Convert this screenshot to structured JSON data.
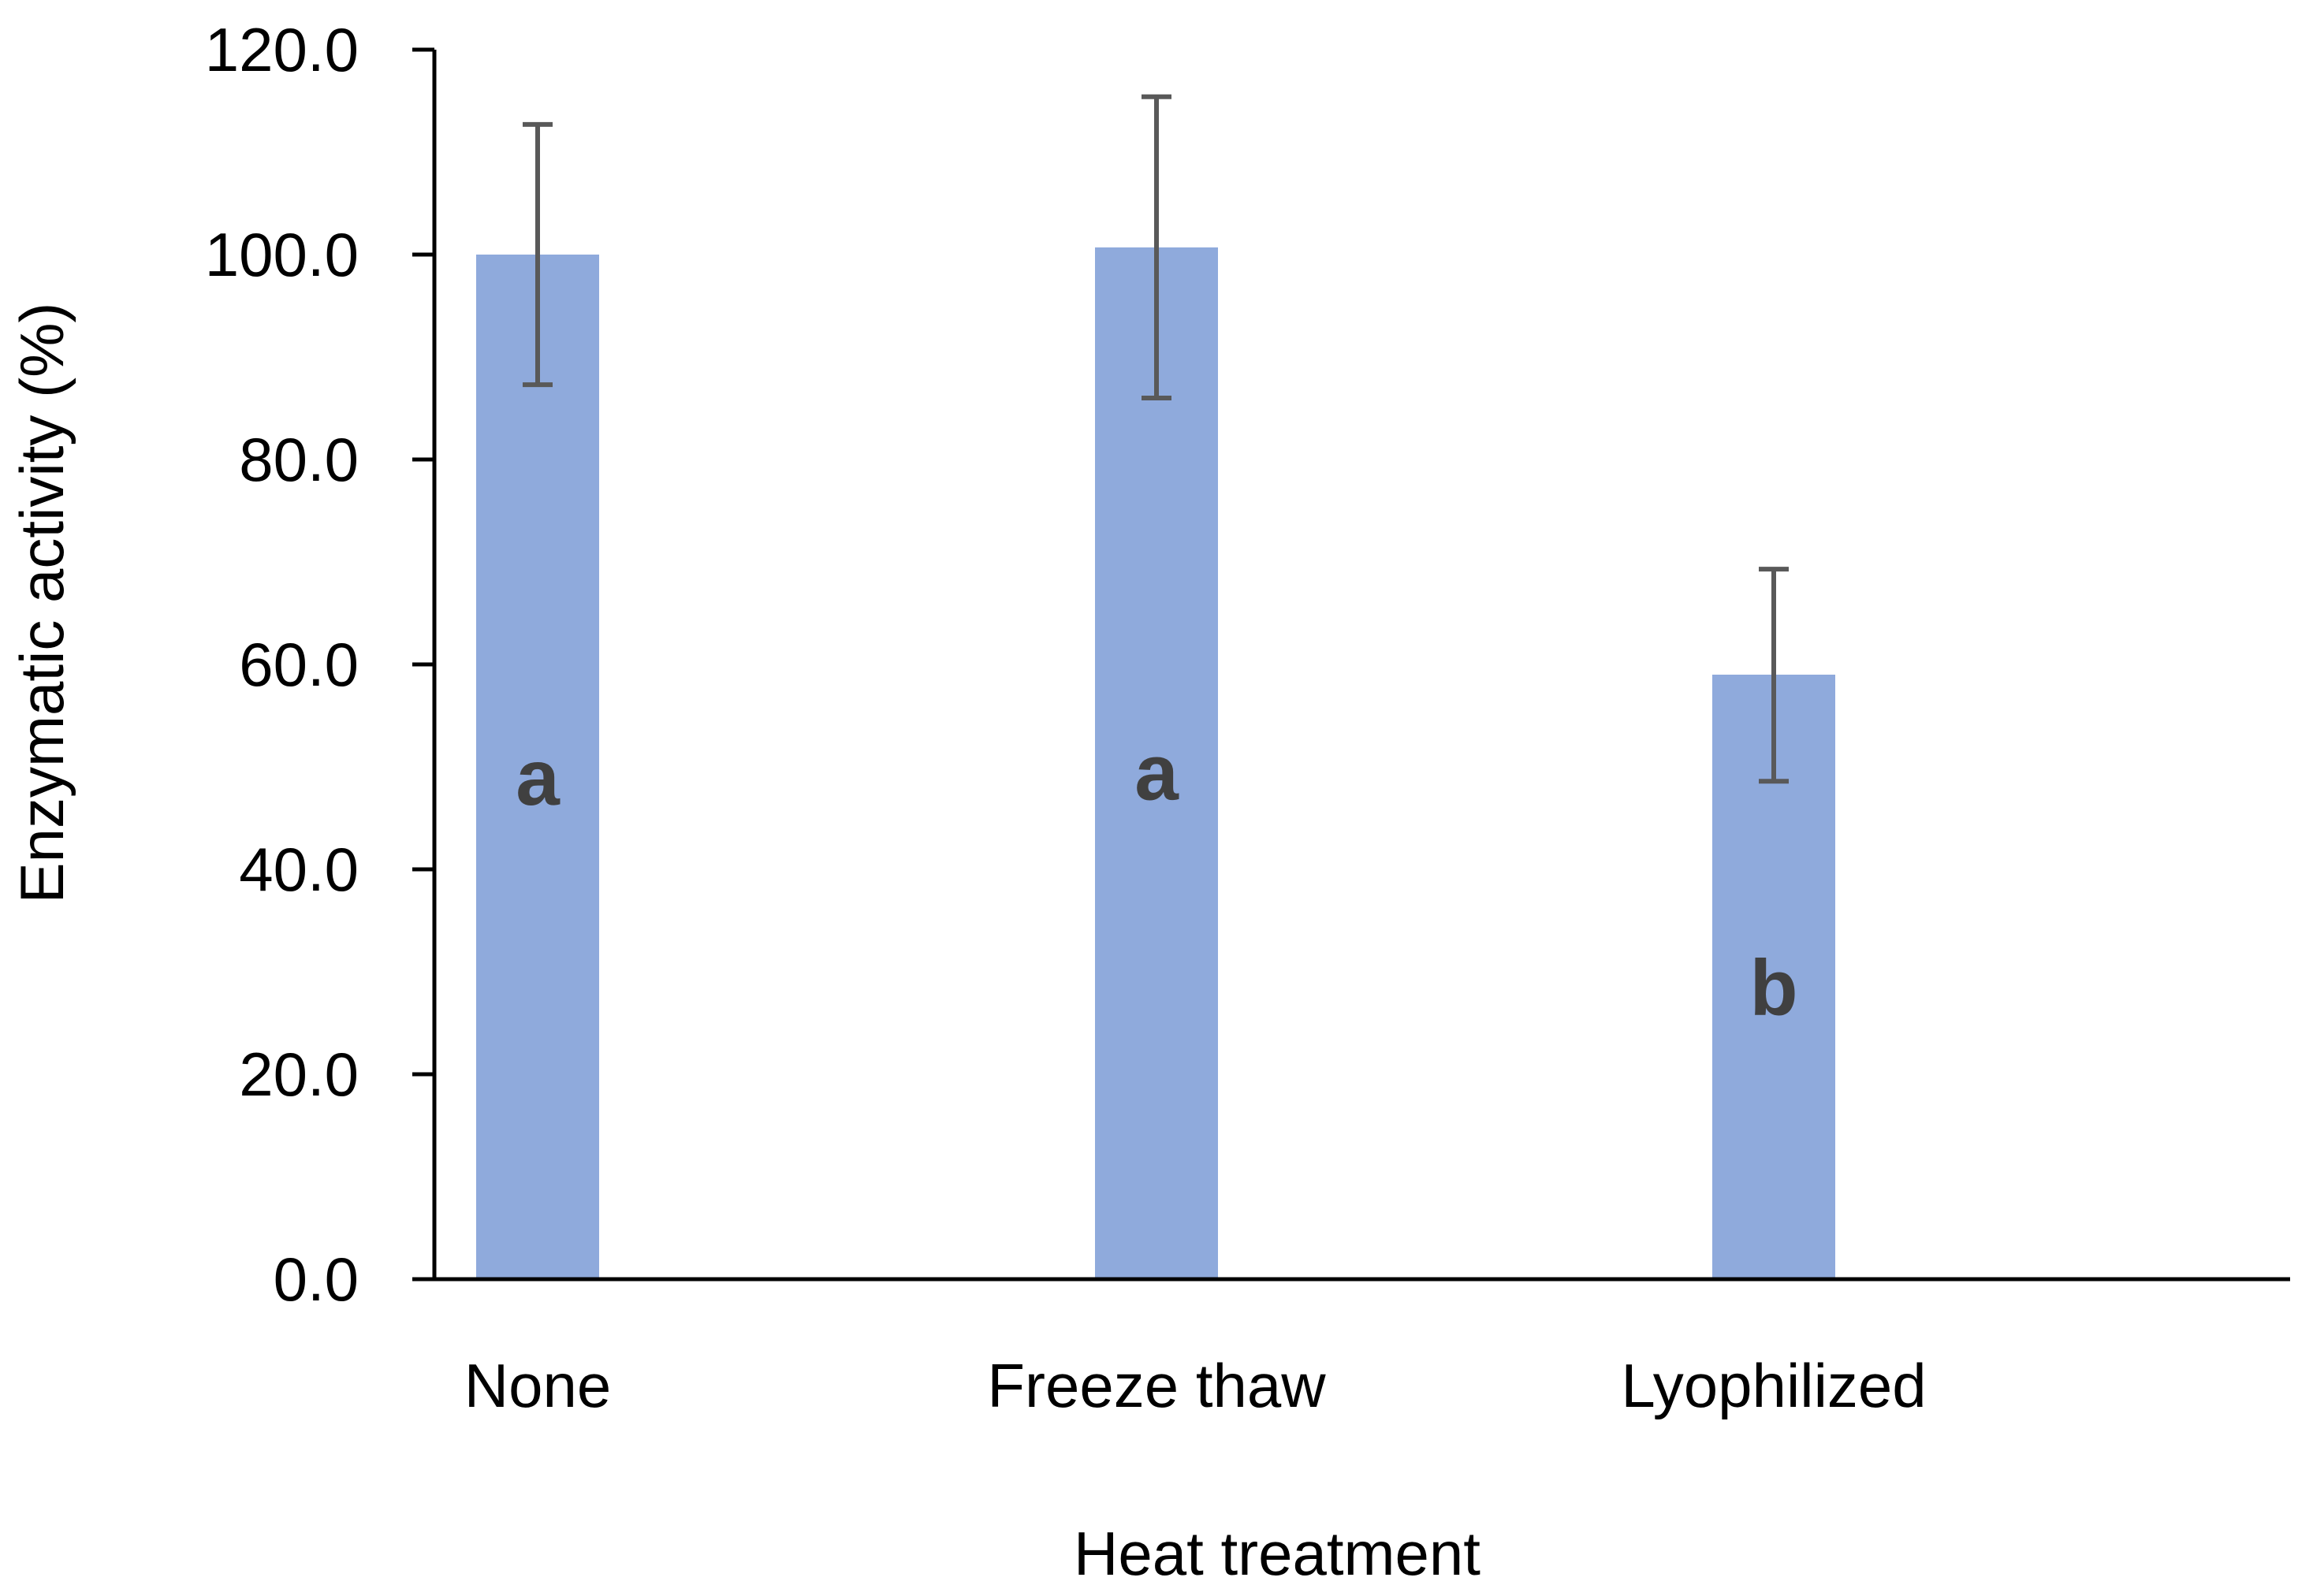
{
  "chart_data": {
    "type": "bar",
    "title": "",
    "xlabel": "Heat treatment",
    "ylabel": "Enzymatic activity (%)",
    "ylim": [
      0,
      120
    ],
    "yticks": [
      0,
      20,
      40,
      60,
      80,
      100,
      120
    ],
    "ytick_labels": [
      "0.0",
      "20.0",
      "40.0",
      "60.0",
      "80.0",
      "100.0",
      "120.0"
    ],
    "categories": [
      "None",
      "Freeze thaw",
      "Lyophilized"
    ],
    "values": [
      100.0,
      100.7,
      59.0
    ],
    "error_low": [
      87.3,
      86.0,
      48.6
    ],
    "error_high": [
      112.7,
      115.4,
      69.3
    ],
    "significance": [
      "a",
      "a",
      "b"
    ],
    "significance_values": [
      49.0,
      49.5,
      28.5
    ],
    "grid": false,
    "legend": "none"
  },
  "colors": {
    "bar": "#8faadc",
    "error_bar": "#595959",
    "axis": "#000000",
    "significance_text": "#404040"
  }
}
